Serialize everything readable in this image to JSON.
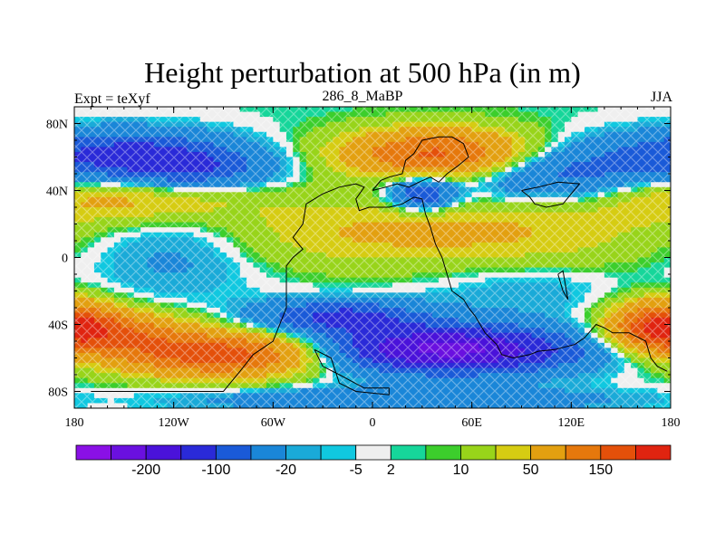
{
  "title": "Height perturbation at 500 hPa (in m)",
  "subtitle_left": "Expt = teXyf",
  "subtitle_center": "286_8_MaBP",
  "subtitle_right": "JJA",
  "chart_data": {
    "type": "heatmap",
    "title": "Height perturbation at 500 hPa (in m)",
    "xlim": [
      -180,
      180
    ],
    "ylim": [
      -90,
      90
    ],
    "x_ticks": [
      {
        "value": -180,
        "label": "180"
      },
      {
        "value": -120,
        "label": "120W"
      },
      {
        "value": -60,
        "label": "60W"
      },
      {
        "value": 0,
        "label": "0"
      },
      {
        "value": 60,
        "label": "60E"
      },
      {
        "value": 120,
        "label": "120E"
      },
      {
        "value": 180,
        "label": "180"
      }
    ],
    "y_ticks": [
      {
        "value": 80,
        "label": "80N"
      },
      {
        "value": 40,
        "label": "40N"
      },
      {
        "value": 0,
        "label": "0"
      },
      {
        "value": -40,
        "label": "40S"
      },
      {
        "value": -80,
        "label": "80S"
      }
    ],
    "colorbar": {
      "colors": [
        "#8a10e6",
        "#6a10e0",
        "#4a12da",
        "#2a2ad8",
        "#1a5ad8",
        "#1a86d8",
        "#1aaad8",
        "#10c8e0",
        "#efefef",
        "#16d69a",
        "#3cce2c",
        "#98d41a",
        "#d6cc12",
        "#e3a010",
        "#e6780c",
        "#e4500a",
        "#e02410"
      ],
      "labels": [
        {
          "after_index": 1,
          "text": "-200"
        },
        {
          "after_index": 3,
          "text": "-100"
        },
        {
          "after_index": 5,
          "text": "-20"
        },
        {
          "after_index": 7,
          "text": "-5"
        },
        {
          "after_index": 8,
          "text": "2"
        },
        {
          "after_index": 10,
          "text": "10"
        },
        {
          "after_index": 12,
          "text": "50"
        },
        {
          "after_index": 14,
          "text": "150"
        }
      ]
    },
    "features": [
      {
        "lon": -150,
        "lat": 62,
        "value": -110,
        "sx": 45,
        "sy": 10
      },
      {
        "lon": -110,
        "lat": 52,
        "value": -80,
        "sx": 35,
        "sy": 9
      },
      {
        "lon": 40,
        "lat": 62,
        "value": 160,
        "sx": 40,
        "sy": 10
      },
      {
        "lon": -150,
        "lat": 35,
        "value": 60,
        "sx": 55,
        "sy": 10
      },
      {
        "lon": -10,
        "lat": 15,
        "value": 40,
        "sx": 60,
        "sy": 14
      },
      {
        "lon": 90,
        "lat": 15,
        "value": 40,
        "sx": 60,
        "sy": 14
      },
      {
        "lon": 30,
        "lat": 38,
        "value": -110,
        "sx": 14,
        "sy": 7
      },
      {
        "lon": 110,
        "lat": 50,
        "value": -80,
        "sx": 40,
        "sy": 12
      },
      {
        "lon": -120,
        "lat": 2,
        "value": -30,
        "sx": 35,
        "sy": 20
      },
      {
        "lon": -90,
        "lat": -58,
        "value": 180,
        "sx": 45,
        "sy": 9
      },
      {
        "lon": -160,
        "lat": -45,
        "value": 120,
        "sx": 35,
        "sy": 9
      },
      {
        "lon": 175,
        "lat": -40,
        "value": 160,
        "sx": 20,
        "sy": 10
      },
      {
        "lon": 45,
        "lat": -55,
        "value": -220,
        "sx": 55,
        "sy": 10
      },
      {
        "lon": -20,
        "lat": -35,
        "value": -110,
        "sx": 35,
        "sy": 7
      },
      {
        "lon": 90,
        "lat": -20,
        "value": -20,
        "sx": 40,
        "sy": 12
      },
      {
        "lon": 20,
        "lat": -85,
        "value": -60,
        "sx": 90,
        "sy": 5
      }
    ],
    "coastlines": [
      [
        [
          -170,
          -80
        ],
        [
          -90,
          -80
        ],
        [
          -80,
          -68
        ],
        [
          -72,
          -58
        ],
        [
          -60,
          -50
        ],
        [
          -52,
          -30
        ],
        [
          -52,
          -5
        ],
        [
          -48,
          0
        ],
        [
          -42,
          5
        ],
        [
          -48,
          12
        ],
        [
          -42,
          20
        ],
        [
          -40,
          32
        ],
        [
          -30,
          38
        ],
        [
          -20,
          42
        ],
        [
          -10,
          44
        ],
        [
          -5,
          42
        ],
        [
          -10,
          35
        ],
        [
          -8,
          28
        ],
        [
          -2,
          30
        ],
        [
          10,
          30
        ],
        [
          18,
          32
        ],
        [
          25,
          36
        ],
        [
          30,
          35
        ],
        [
          32,
          26
        ],
        [
          35,
          18
        ],
        [
          38,
          8
        ],
        [
          42,
          0
        ],
        [
          45,
          -10
        ],
        [
          48,
          -20
        ],
        [
          55,
          -25
        ],
        [
          58,
          -30
        ],
        [
          62,
          -35
        ],
        [
          65,
          -40
        ],
        [
          68,
          -45
        ],
        [
          75,
          -52
        ],
        [
          78,
          -58
        ],
        [
          85,
          -60
        ],
        [
          95,
          -58
        ],
        [
          100,
          -56
        ],
        [
          110,
          -55
        ],
        [
          122,
          -52
        ],
        [
          128,
          -48
        ],
        [
          135,
          -40
        ],
        [
          140,
          -42
        ],
        [
          145,
          -45
        ],
        [
          155,
          -45
        ],
        [
          165,
          -50
        ],
        [
          168,
          -60
        ],
        [
          172,
          -65
        ],
        [
          178,
          -68
        ]
      ],
      [
        [
          0,
          40
        ],
        [
          8,
          42
        ],
        [
          15,
          44
        ],
        [
          22,
          42
        ],
        [
          28,
          45
        ],
        [
          35,
          48
        ],
        [
          40,
          45
        ],
        [
          45,
          50
        ],
        [
          52,
          55
        ],
        [
          58,
          60
        ],
        [
          55,
          68
        ],
        [
          48,
          72
        ],
        [
          40,
          72
        ],
        [
          30,
          70
        ],
        [
          25,
          62
        ],
        [
          20,
          58
        ],
        [
          18,
          50
        ],
        [
          10,
          48
        ],
        [
          5,
          46
        ],
        [
          0,
          40
        ]
      ],
      [
        [
          90,
          40
        ],
        [
          100,
          42
        ],
        [
          112,
          45
        ],
        [
          125,
          44
        ],
        [
          120,
          38
        ],
        [
          115,
          32
        ],
        [
          105,
          30
        ],
        [
          98,
          32
        ],
        [
          95,
          36
        ],
        [
          90,
          40
        ]
      ],
      [
        [
          112,
          -10
        ],
        [
          115,
          -20
        ],
        [
          118,
          -25
        ],
        [
          115,
          -8
        ],
        [
          112,
          -10
        ]
      ],
      [
        [
          -35,
          -55
        ],
        [
          -25,
          -60
        ],
        [
          -20,
          -75
        ],
        [
          -10,
          -80
        ],
        [
          10,
          -82
        ],
        [
          10,
          -78
        ],
        [
          -5,
          -78
        ],
        [
          -20,
          -70
        ],
        [
          -30,
          -65
        ],
        [
          -35,
          -55
        ]
      ]
    ]
  }
}
